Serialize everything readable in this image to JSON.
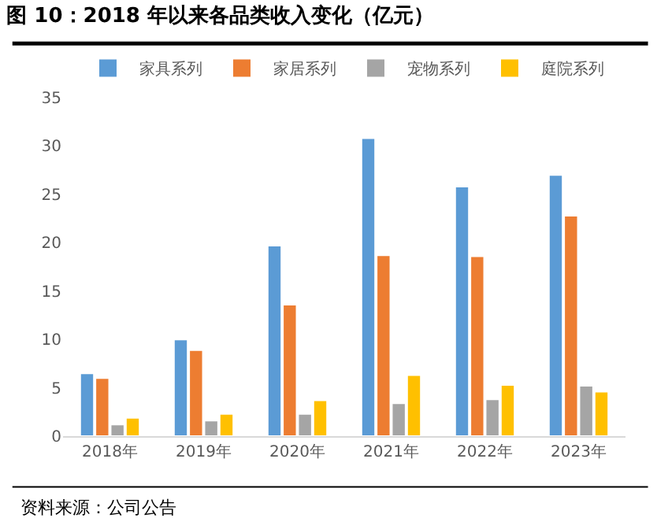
{
  "chart_data": {
    "type": "bar",
    "title": "图 10：2018 年以来各品类收入变化（亿元）",
    "categories": [
      "2018年",
      "2019年",
      "2020年",
      "2021年",
      "2022年",
      "2023年"
    ],
    "series": [
      {
        "name": "家具系列",
        "color": "#5b9bd5",
        "values": [
          6.5,
          10.0,
          19.7,
          30.8,
          25.8,
          27.0
        ]
      },
      {
        "name": "家居系列",
        "color": "#ed7d31",
        "values": [
          6.0,
          8.9,
          13.6,
          18.7,
          18.6,
          22.8
        ]
      },
      {
        "name": "宠物系列",
        "color": "#a5a5a5",
        "values": [
          1.2,
          1.6,
          2.3,
          3.4,
          3.8,
          5.2
        ]
      },
      {
        "name": "庭院系列",
        "color": "#ffc000",
        "values": [
          1.9,
          2.3,
          3.7,
          6.3,
          5.3,
          4.6
        ]
      }
    ],
    "ylim": [
      0,
      35
    ],
    "yticks": [
      0,
      5,
      10,
      15,
      20,
      25,
      30,
      35
    ],
    "grid": false,
    "legend": "top",
    "annotations": [
      "资料来源：公司公告"
    ]
  }
}
